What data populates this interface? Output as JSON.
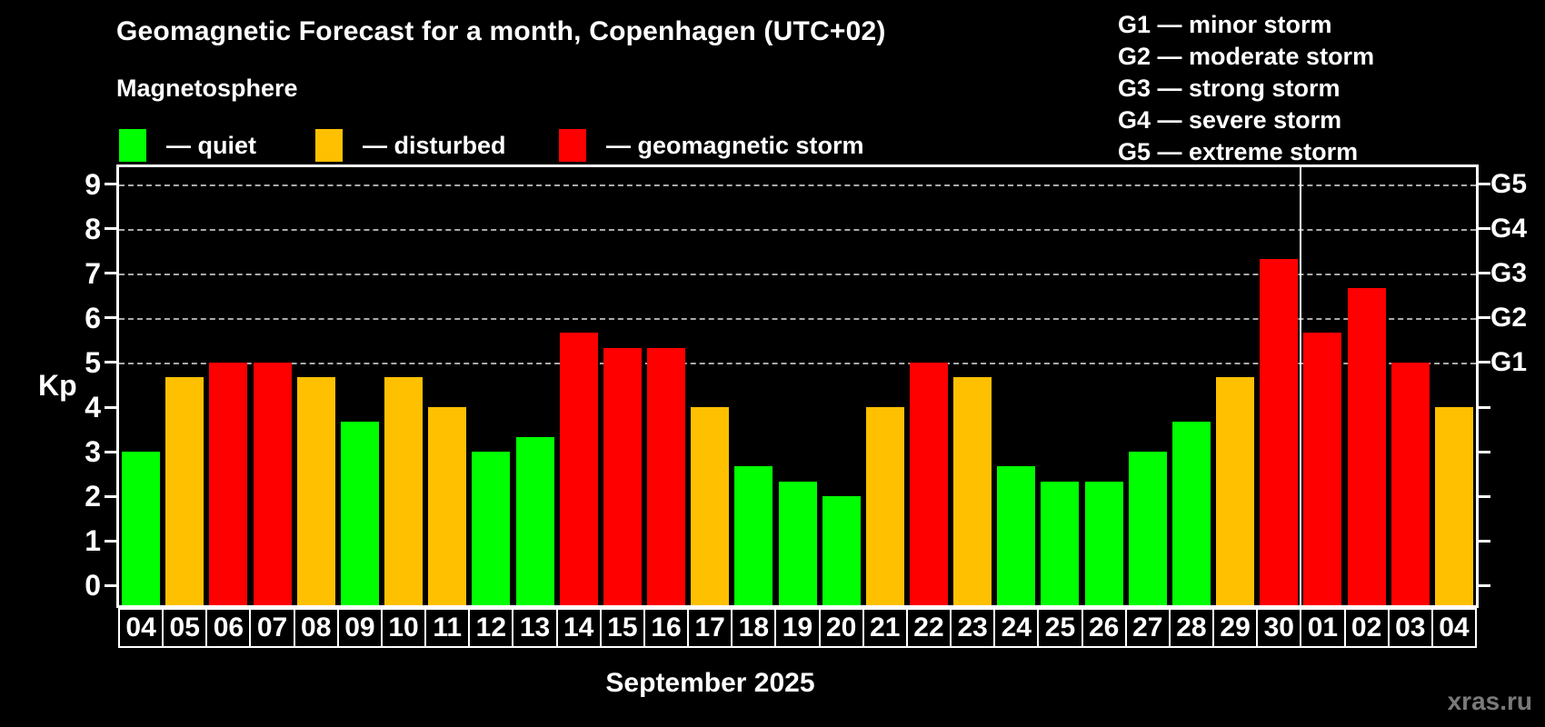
{
  "header": {
    "title": "Geomagnetic Forecast for a month, Copenhagen (UTC+02)",
    "subtitle": "Magnetosphere"
  },
  "legend": {
    "items": [
      {
        "status": "quiet",
        "label": "— quiet"
      },
      {
        "status": "disturbed",
        "label": "— disturbed"
      },
      {
        "status": "storm",
        "label": "— geomagnetic storm"
      }
    ]
  },
  "g_scale": {
    "items": [
      "G1 — minor storm",
      "G2 — moderate storm",
      "G3 — strong storm",
      "G4 — severe storm",
      "G5 — extreme storm"
    ]
  },
  "colors": {
    "quiet": "#00ff00",
    "disturbed": "#ffc000",
    "storm": "#ff0000",
    "background": "#000000",
    "text": "#ffffff",
    "grid": "#aaaaaa",
    "watermark": "#7a7a7a"
  },
  "chart_data": {
    "type": "bar",
    "title": "Geomagnetic Forecast for a month, Copenhagen (UTC+02)",
    "ylabel": "Kp",
    "xlabel": "September 2025",
    "ylim": [
      -0.44,
      9.38
    ],
    "yticks": [
      0,
      1,
      2,
      3,
      4,
      5,
      6,
      7,
      8,
      9
    ],
    "gridlines_kp": [
      5,
      6,
      7,
      8,
      9
    ],
    "right_axis": [
      {
        "kp": 5,
        "label": "G1"
      },
      {
        "kp": 6,
        "label": "G2"
      },
      {
        "kp": 7,
        "label": "G3"
      },
      {
        "kp": 8,
        "label": "G4"
      },
      {
        "kp": 9,
        "label": "G5"
      }
    ],
    "month_separator_after_index": 26,
    "bars": [
      {
        "date": "04",
        "kp": 3.0,
        "status": "quiet"
      },
      {
        "date": "05",
        "kp": 4.67,
        "status": "disturbed"
      },
      {
        "date": "06",
        "kp": 5.0,
        "status": "storm"
      },
      {
        "date": "07",
        "kp": 5.0,
        "status": "storm"
      },
      {
        "date": "08",
        "kp": 4.67,
        "status": "disturbed"
      },
      {
        "date": "09",
        "kp": 3.67,
        "status": "quiet"
      },
      {
        "date": "10",
        "kp": 4.67,
        "status": "disturbed"
      },
      {
        "date": "11",
        "kp": 4.0,
        "status": "disturbed"
      },
      {
        "date": "12",
        "kp": 3.0,
        "status": "quiet"
      },
      {
        "date": "13",
        "kp": 3.33,
        "status": "quiet"
      },
      {
        "date": "14",
        "kp": 5.67,
        "status": "storm"
      },
      {
        "date": "15",
        "kp": 5.33,
        "status": "storm"
      },
      {
        "date": "16",
        "kp": 5.33,
        "status": "storm"
      },
      {
        "date": "17",
        "kp": 4.0,
        "status": "disturbed"
      },
      {
        "date": "18",
        "kp": 2.67,
        "status": "quiet"
      },
      {
        "date": "19",
        "kp": 2.33,
        "status": "quiet"
      },
      {
        "date": "20",
        "kp": 2.0,
        "status": "quiet"
      },
      {
        "date": "21",
        "kp": 4.0,
        "status": "disturbed"
      },
      {
        "date": "22",
        "kp": 5.0,
        "status": "storm"
      },
      {
        "date": "23",
        "kp": 4.67,
        "status": "disturbed"
      },
      {
        "date": "24",
        "kp": 2.67,
        "status": "quiet"
      },
      {
        "date": "25",
        "kp": 2.33,
        "status": "quiet"
      },
      {
        "date": "26",
        "kp": 2.33,
        "status": "quiet"
      },
      {
        "date": "27",
        "kp": 3.0,
        "status": "quiet"
      },
      {
        "date": "28",
        "kp": 3.67,
        "status": "quiet"
      },
      {
        "date": "29",
        "kp": 4.67,
        "status": "disturbed"
      },
      {
        "date": "30",
        "kp": 7.33,
        "status": "storm"
      },
      {
        "date": "01",
        "kp": 5.67,
        "status": "storm"
      },
      {
        "date": "02",
        "kp": 6.67,
        "status": "storm"
      },
      {
        "date": "03",
        "kp": 5.0,
        "status": "storm"
      },
      {
        "date": "04",
        "kp": 4.0,
        "status": "disturbed"
      }
    ]
  },
  "footer": {
    "month_label": "September 2025",
    "watermark": "xras.ru"
  }
}
